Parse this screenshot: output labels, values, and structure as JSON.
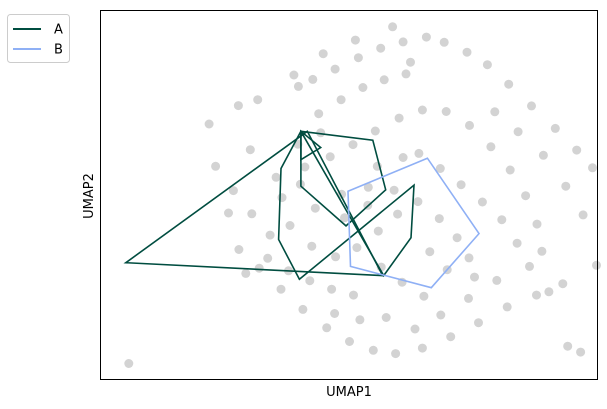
{
  "chart_data": {
    "type": "scatter",
    "xlabel": "UMAP1",
    "ylabel": "UMAP2",
    "xlim": [
      0,
      100
    ],
    "ylim": [
      0,
      100
    ],
    "grid": false,
    "ticks": false,
    "legend": {
      "placement": "upper-left-outside",
      "entries": [
        {
          "name": "A",
          "color": "#004d40"
        },
        {
          "name": "B",
          "color": "#8fb0f5"
        }
      ]
    },
    "background_points": {
      "color": "#d3d3d3",
      "points": [
        [
          5.6,
          4.2
        ],
        [
          21.8,
          69.3
        ],
        [
          27.7,
          74.3
        ],
        [
          31.6,
          75.9
        ],
        [
          39.8,
          79.5
        ],
        [
          42.7,
          81.4
        ],
        [
          47.2,
          84.2
        ],
        [
          51.9,
          87.3
        ],
        [
          56.4,
          89.9
        ],
        [
          60.9,
          91.6
        ],
        [
          65.6,
          92.9
        ],
        [
          69.2,
          91.5
        ],
        [
          73.8,
          88.8
        ],
        [
          77.9,
          85.4
        ],
        [
          82.2,
          80.1
        ],
        [
          86.8,
          74.2
        ],
        [
          91.6,
          68.1
        ],
        [
          95.9,
          62.2
        ],
        [
          99.1,
          57.4
        ],
        [
          27.8,
          35.2
        ],
        [
          31.9,
          30.1
        ],
        [
          36.3,
          24.4
        ],
        [
          40.7,
          18.9
        ],
        [
          45.5,
          13.9
        ],
        [
          50.1,
          10.2
        ],
        [
          54.9,
          7.8
        ],
        [
          59.4,
          6.9
        ],
        [
          64.8,
          8.4
        ],
        [
          70.5,
          11.5
        ],
        [
          76.1,
          15.3
        ],
        [
          81.9,
          19.6
        ],
        [
          87.8,
          22.8
        ],
        [
          93.1,
          25.9
        ],
        [
          96.7,
          7.3
        ],
        [
          94.1,
          8.9
        ],
        [
          99.9,
          30.9
        ],
        [
          35.3,
          54.8
        ],
        [
          41.1,
          57.6
        ],
        [
          46.2,
          60.4
        ],
        [
          50.8,
          63.7
        ],
        [
          55.3,
          67.4
        ],
        [
          60.1,
          70.9
        ],
        [
          64.8,
          73.1
        ],
        [
          69.6,
          72.7
        ],
        [
          74.3,
          68.9
        ],
        [
          78.6,
          63.1
        ],
        [
          82.5,
          56.8
        ],
        [
          85.6,
          49.8
        ],
        [
          87.9,
          42.1
        ],
        [
          88.9,
          34.7
        ],
        [
          38.1,
          41.7
        ],
        [
          43.2,
          46.4
        ],
        [
          48.5,
          50.2
        ],
        [
          53.9,
          52.1
        ],
        [
          59.1,
          51.3
        ],
        [
          63.9,
          48.2
        ],
        [
          68.2,
          43.6
        ],
        [
          71.8,
          38.4
        ],
        [
          74.2,
          32.9
        ],
        [
          75.3,
          27.7
        ],
        [
          23.1,
          57.8
        ],
        [
          26.7,
          51.2
        ],
        [
          30.4,
          44.9
        ],
        [
          34.1,
          39.1
        ],
        [
          56.5,
          30.4
        ],
        [
          60.7,
          26.3
        ],
        [
          65.1,
          22.5
        ],
        [
          42.5,
          36.1
        ],
        [
          47.3,
          33.2
        ],
        [
          51.6,
          35.7
        ],
        [
          55.9,
          40.2
        ],
        [
          59.8,
          44.8
        ],
        [
          64.1,
          61.3
        ],
        [
          68.4,
          57.2
        ],
        [
          72.6,
          52.8
        ],
        [
          76.9,
          48.1
        ],
        [
          80.8,
          43.3
        ],
        [
          43.9,
          72.1
        ],
        [
          48.4,
          75.9
        ],
        [
          52.8,
          79.2
        ],
        [
          57.1,
          81.3
        ],
        [
          61.5,
          82.9
        ],
        [
          39.7,
          63.8
        ],
        [
          44.3,
          66.9
        ],
        [
          33.6,
          32.8
        ],
        [
          37.8,
          29.4
        ],
        [
          42.1,
          26.7
        ],
        [
          46.5,
          24.4
        ],
        [
          50.9,
          22.8
        ],
        [
          83.9,
          36.9
        ],
        [
          86.4,
          30.6
        ],
        [
          90.3,
          23.7
        ],
        [
          44.8,
          88.4
        ],
        [
          51.3,
          92.1
        ],
        [
          58.8,
          95.7
        ],
        [
          62.4,
          86.1
        ],
        [
          38.9,
          82.6
        ],
        [
          30.1,
          62.3
        ],
        [
          25.7,
          45.1
        ],
        [
          29.2,
          28.7
        ],
        [
          66.3,
          34.6
        ],
        [
          69.8,
          29.7
        ],
        [
          55.7,
          57.8
        ],
        [
          60.9,
          60.2
        ],
        [
          49.1,
          43.8
        ],
        [
          53.8,
          47.2
        ],
        [
          36.5,
          49.3
        ],
        [
          40.2,
          52.9
        ],
        [
          79.4,
          72.6
        ],
        [
          84.1,
          67.2
        ],
        [
          89.2,
          60.8
        ],
        [
          93.7,
          52.4
        ],
        [
          97.2,
          44.6
        ],
        [
          63.3,
          13.6
        ],
        [
          68.5,
          17.4
        ],
        [
          74.1,
          21.9
        ],
        [
          79.8,
          26.8
        ],
        [
          57.5,
          16.7
        ],
        [
          52.2,
          16.1
        ],
        [
          47.1,
          17.8
        ]
      ]
    },
    "series": [
      {
        "name": "A",
        "color": "#004d40",
        "polygons": [
          [
            [
              41.6,
              67.3
            ],
            [
              5.0,
              31.6
            ],
            [
              56.8,
              28.1
            ]
          ],
          [
            [
              40.3,
              67.3
            ],
            [
              40.3,
              59.6
            ],
            [
              44.3,
              62.9
            ]
          ],
          [
            [
              40.3,
              67.3
            ],
            [
              54.8,
              64.9
            ],
            [
              57.4,
              51.4
            ],
            [
              49.4,
              41.6
            ],
            [
              40.3,
              52.4
            ]
          ],
          [
            [
              40.3,
              67.3
            ],
            [
              36.3,
              57.2
            ],
            [
              35.8,
              37.9
            ],
            [
              40.0,
              27.1
            ],
            [
              63.1,
              52.7
            ],
            [
              62.5,
              38.4
            ],
            [
              57.0,
              28.1
            ]
          ]
        ]
      },
      {
        "name": "B",
        "color": "#8fb0f5",
        "polygons": [
          [
            [
              49.8,
              51.0
            ],
            [
              65.8,
              60.0
            ],
            [
              76.2,
              39.5
            ],
            [
              66.6,
              24.8
            ],
            [
              50.3,
              30.6
            ]
          ]
        ]
      }
    ]
  }
}
